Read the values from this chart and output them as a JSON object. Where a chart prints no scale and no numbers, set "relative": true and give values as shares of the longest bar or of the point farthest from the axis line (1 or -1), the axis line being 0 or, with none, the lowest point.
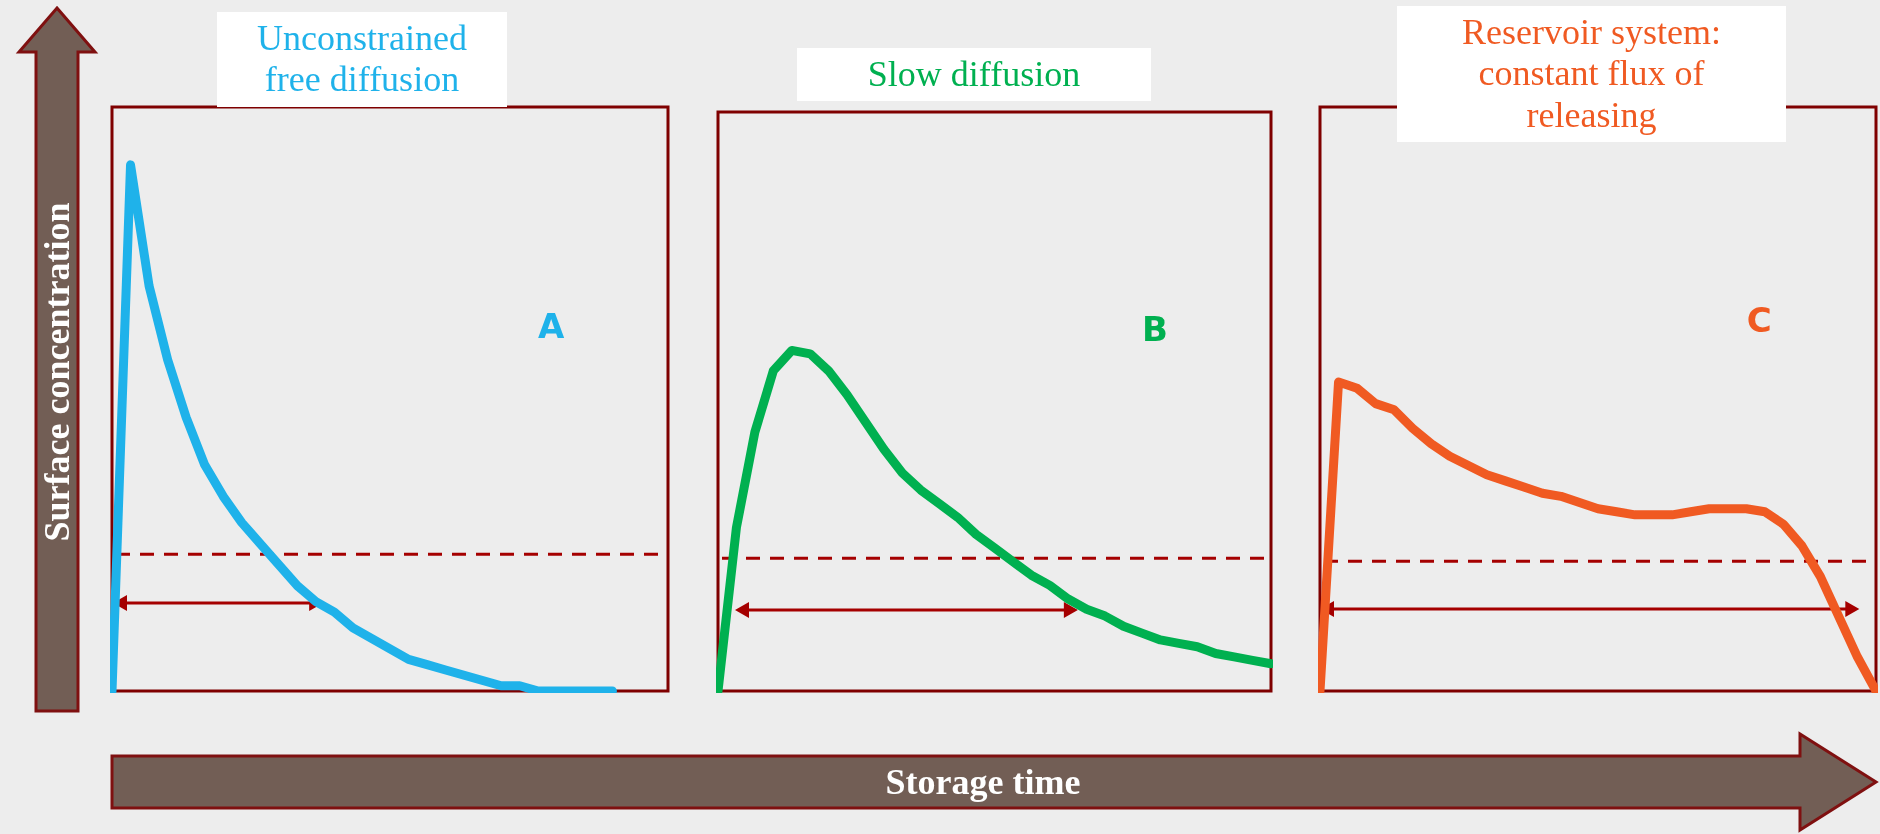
{
  "chart_data": [
    {
      "type": "line",
      "title": "Unconstrained free diffusion",
      "ylabel": "Surface concentration",
      "relative": true,
      "marker": "none",
      "categories": [
        null,
        null,
        null,
        null,
        null,
        null,
        null,
        null,
        null,
        null,
        null,
        null,
        null,
        null,
        null,
        null,
        null,
        null,
        null,
        null,
        null,
        null,
        null,
        null,
        null,
        null,
        null,
        null,
        null,
        null,
        null
      ],
      "series": [
        {
          "color": "#1fb2ea",
          "values": [
            0,
            1,
            0.77,
            0.63,
            0.52,
            0.43,
            0.37,
            0.32,
            0.28,
            0.24,
            0.2,
            0.17,
            0.15,
            0.12,
            0.1,
            0.08,
            0.06,
            0.05,
            0.04,
            0.03,
            0.02,
            0.01,
            0.01,
            0,
            0,
            0,
            0,
            0,
            null,
            null,
            null
          ]
        }
      ],
      "ref_lines": [
        {
          "axis": "y",
          "value": 0.26,
          "color": "#a50000",
          "line_style": "dashed"
        }
      ],
      "annotations": [
        "A"
      ]
    },
    {
      "type": "line",
      "title": "Slow diffusion",
      "xlabel": "Storage time",
      "relative": true,
      "marker": "none",
      "categories": [
        null,
        null,
        null,
        null,
        null,
        null,
        null,
        null,
        null,
        null,
        null,
        null,
        null,
        null,
        null,
        null,
        null,
        null,
        null,
        null,
        null,
        null,
        null,
        null,
        null,
        null,
        null,
        null,
        null,
        null,
        null
      ],
      "series": [
        {
          "color": "#00b050",
          "values": [
            0,
            0.48,
            0.76,
            0.94,
            1,
            0.99,
            0.94,
            0.87,
            0.79,
            0.71,
            0.64,
            0.59,
            0.55,
            0.51,
            0.46,
            0.42,
            0.38,
            0.34,
            0.31,
            0.27,
            0.24,
            0.22,
            0.19,
            0.17,
            0.15,
            0.14,
            0.13,
            0.11,
            0.1,
            0.09,
            0.08
          ]
        }
      ],
      "ref_lines": [
        {
          "axis": "y",
          "value": 0.39,
          "color": "#a50000",
          "line_style": "dashed"
        }
      ],
      "annotations": [
        "B"
      ]
    },
    {
      "type": "line",
      "title": "Reservoir system: constant flux of releasing",
      "relative": true,
      "marker": "none",
      "categories": [
        null,
        null,
        null,
        null,
        null,
        null,
        null,
        null,
        null,
        null,
        null,
        null,
        null,
        null,
        null,
        null,
        null,
        null,
        null,
        null,
        null,
        null,
        null,
        null,
        null,
        null,
        null,
        null,
        null,
        null,
        null
      ],
      "series": [
        {
          "color": "#f05a22",
          "values": [
            0,
            1,
            0.98,
            0.93,
            0.91,
            0.85,
            0.8,
            0.76,
            0.73,
            0.7,
            0.68,
            0.66,
            0.64,
            0.63,
            0.61,
            0.59,
            0.58,
            0.57,
            0.57,
            0.57,
            0.58,
            0.59,
            0.59,
            0.59,
            0.58,
            0.54,
            0.47,
            0.37,
            0.24,
            0.11,
            0
          ]
        }
      ],
      "ref_lines": [
        {
          "axis": "y",
          "value": 0.42,
          "color": "#a50000",
          "line_style": "dashed"
        }
      ],
      "annotations": [
        "C"
      ]
    }
  ]
}
